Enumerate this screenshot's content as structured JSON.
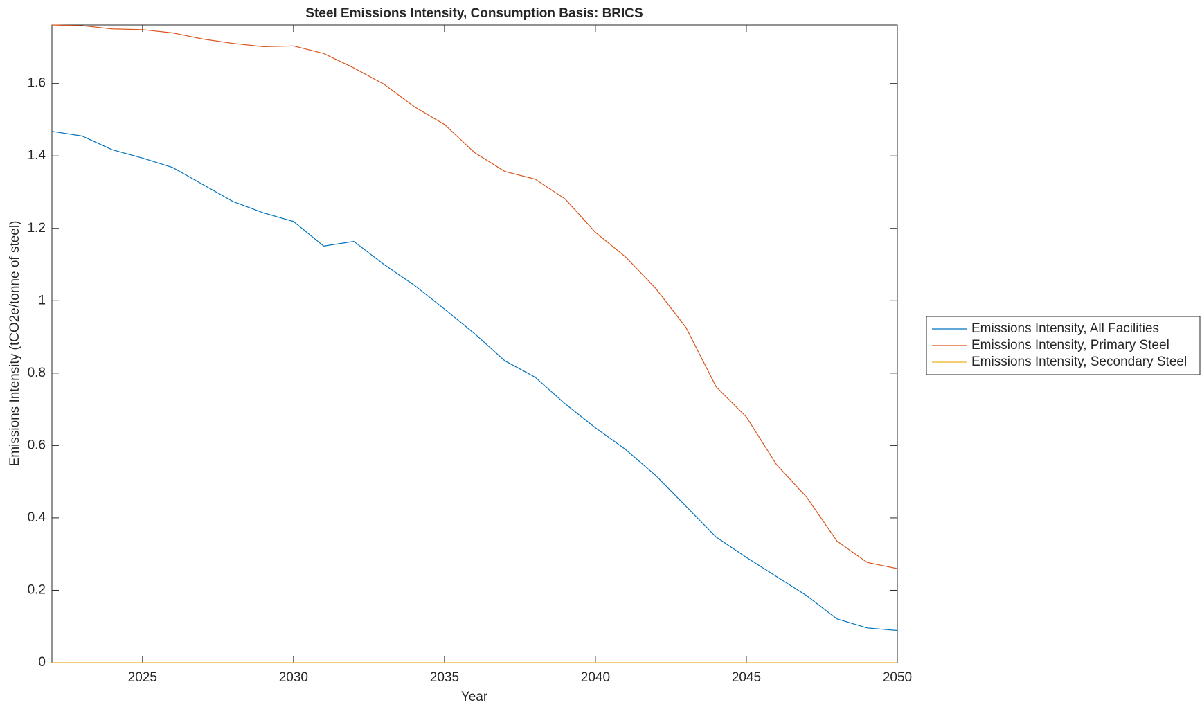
{
  "chart_data": {
    "type": "line",
    "title": "Steel Emissions Intensity, Consumption Basis: BRICS",
    "x_label": "Year",
    "y_label": "Emissions Intensity (tCO2e/tonne of steel)",
    "x": [
      2022,
      2023,
      2024,
      2025,
      2026,
      2027,
      2028,
      2029,
      2030,
      2031,
      2032,
      2033,
      2034,
      2035,
      2036,
      2037,
      2038,
      2039,
      2040,
      2041,
      2042,
      2043,
      2044,
      2045,
      2046,
      2047,
      2048,
      2049,
      2050
    ],
    "series": [
      {
        "name": "Emissions Intensity, All Facilities",
        "color": "#0072bd",
        "values": [
          1.468,
          1.455,
          1.417,
          1.394,
          1.368,
          1.321,
          1.274,
          1.243,
          1.219,
          1.151,
          1.164,
          1.1,
          1.043,
          0.977,
          0.909,
          0.834,
          0.789,
          0.715,
          0.649,
          0.589,
          0.517,
          0.432,
          0.347,
          0.291,
          0.238,
          0.185,
          0.121,
          0.096,
          0.089
        ]
      },
      {
        "name": "Emissions Intensity, Primary Steel",
        "color": "#d95319",
        "values": [
          1.762,
          1.76,
          1.751,
          1.749,
          1.74,
          1.723,
          1.711,
          1.702,
          1.704,
          1.683,
          1.643,
          1.598,
          1.536,
          1.487,
          1.409,
          1.357,
          1.336,
          1.281,
          1.189,
          1.121,
          1.034,
          0.926,
          0.762,
          0.679,
          0.547,
          0.457,
          0.336,
          0.277,
          0.26
        ]
      },
      {
        "name": "Emissions Intensity, Secondary Steel",
        "color": "#edb120",
        "values": [
          0,
          0,
          0,
          0,
          0,
          0,
          0,
          0,
          0,
          0,
          0,
          0,
          0,
          0,
          0,
          0,
          0,
          0,
          0,
          0,
          0,
          0,
          0,
          0,
          0,
          0,
          0,
          0,
          0
        ]
      }
    ],
    "xlim": [
      2022,
      2050
    ],
    "xticks": [
      2025,
      2030,
      2035,
      2040,
      2045,
      2050
    ],
    "ylim": [
      0,
      1.762
    ],
    "yticks": [
      0,
      0.2,
      0.4,
      0.6,
      0.8,
      1,
      1.2,
      1.4,
      1.6
    ],
    "grid": false,
    "legend": "outside-right"
  }
}
